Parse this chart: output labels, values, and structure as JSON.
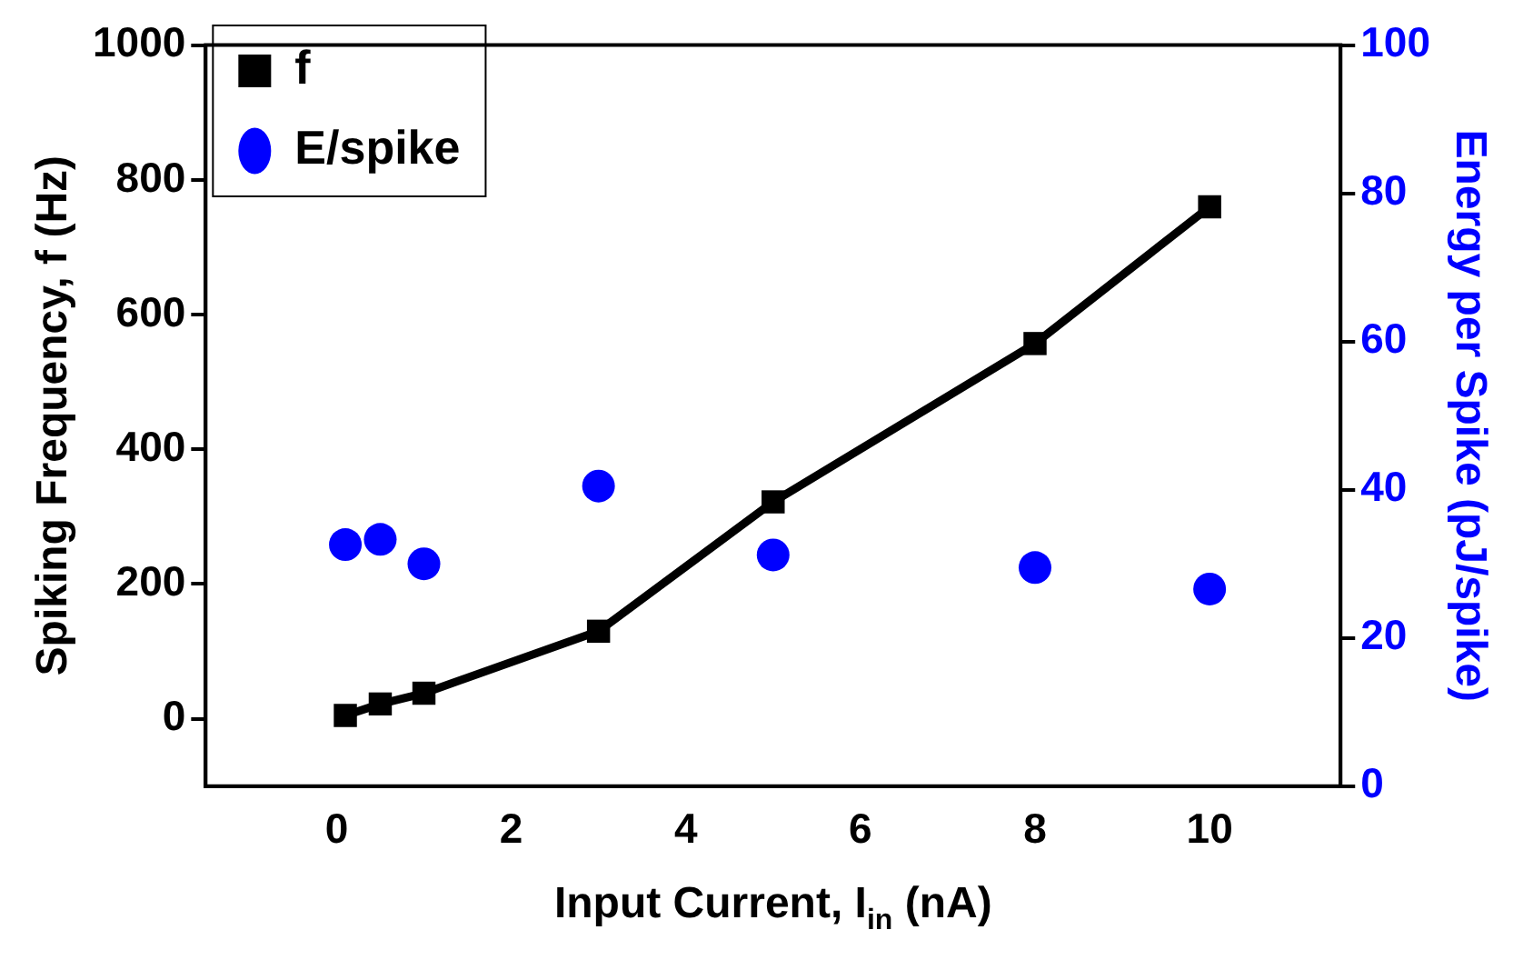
{
  "chart_data": {
    "type": "line",
    "xlabel": "Input Current, I$_{in}$ (nA)",
    "ylabel": "Spiking Frequency, f (Hz)",
    "y2label": "Energy per Spike (pJ/spike)",
    "x": [
      0.1,
      0.5,
      1,
      3,
      5,
      8,
      10
    ],
    "series": [
      {
        "name": "f",
        "color": "#000000",
        "marker": "square",
        "line_style": "solid",
        "values": [
          5,
          22,
          38,
          130,
          322,
          557,
          760
        ]
      },
      {
        "name": "E/spike",
        "type": "scatter",
        "color": "#0000ff",
        "marker": "circle",
        "axis": "y2",
        "values": [
          32.6,
          33.3,
          30.0,
          40.5,
          31.2,
          29.5,
          26.6
        ]
      }
    ],
    "xlim": [
      -1.5,
      11.5
    ],
    "xticks": [
      0,
      2,
      4,
      6,
      8,
      10
    ],
    "ylim": [
      -100,
      1000
    ],
    "yticks": [
      0,
      200,
      400,
      600,
      800,
      1000
    ],
    "y2lim": [
      0,
      100
    ],
    "y2ticks": [
      0,
      20,
      40,
      60,
      80,
      100
    ],
    "grid": false,
    "legend": "top left"
  }
}
